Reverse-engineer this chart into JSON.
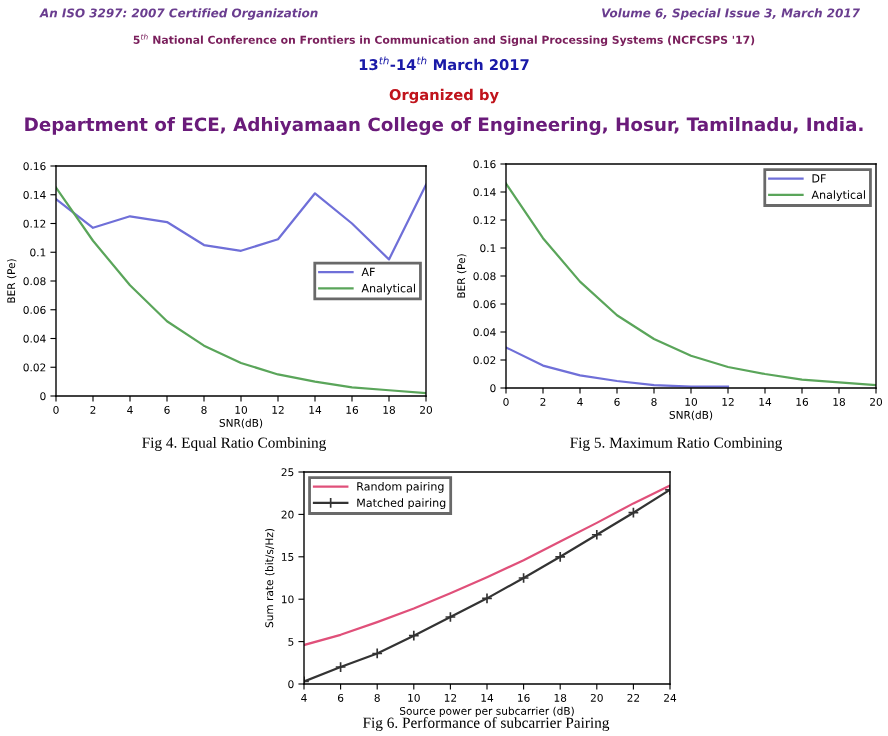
{
  "chart_data": [
    {
      "type": "line",
      "xlabel": "SNR(dB)",
      "ylabel": "BER (Pe)",
      "annotations": [
        "An ISO 3297: 2007 Certified Organization",
        "Volume 6, Special Issue 3, March 2017",
        "5$^{th}$ National Conference on Frontiers in Communication and Signal Processing Systems (NCFCSPS '17)",
        "13$^{th}$-14$^{th}$ March 2017",
        "Organized by",
        "Department of ECE, Adhiyamaan College of Engineering, Hosur, Tamilnadu, India.",
        "Fig 4. Equal Ratio Combining"
      ],
      "x": [
        0,
        2,
        4,
        6,
        8,
        10,
        12,
        14,
        16,
        18,
        20
      ],
      "series": [
        {
          "name": "AF",
          "color": "#6f6fd8",
          "values": [
            0.137,
            0.117,
            0.125,
            0.121,
            0.105,
            0.101,
            0.109,
            0.141,
            0.12,
            0.095,
            0.147
          ]
        },
        {
          "name": "Analytical",
          "color": "#5aa55a",
          "values": [
            0.145,
            0.108,
            0.077,
            0.052,
            0.035,
            0.023,
            0.015,
            0.01,
            0.006,
            0.004,
            0.002
          ]
        }
      ],
      "xlim": [
        0,
        20
      ],
      "xticks": [
        0,
        2,
        4,
        6,
        8,
        10,
        12,
        14,
        16,
        18,
        20
      ],
      "ylim": [
        0,
        0.16
      ],
      "yticks": [
        0,
        0.02,
        0.04,
        0.06,
        0.08,
        0.1,
        0.12,
        0.14,
        0.16
      ],
      "legend": "right"
    },
    {
      "type": "line",
      "xlabel": "SNR(dB)",
      "ylabel": "BER (Pe)",
      "annotations": [
        "Fig 5. Maximum Ratio Combining"
      ],
      "x": [
        0,
        2,
        4,
        6,
        8,
        10,
        12,
        14,
        16,
        18,
        20
      ],
      "series": [
        {
          "name": "DF",
          "color": "#6f6fd8",
          "values": [
            0.029,
            0.016,
            0.009,
            0.005,
            0.002,
            0.001,
            0.001,
            null,
            null,
            null,
            null
          ]
        },
        {
          "name": "Analytical",
          "color": "#5aa55a",
          "values": [
            0.146,
            0.107,
            0.076,
            0.052,
            0.035,
            0.023,
            0.015,
            0.01,
            0.006,
            0.004,
            0.002
          ]
        }
      ],
      "xlim": [
        0,
        20
      ],
      "xticks": [
        0,
        2,
        4,
        6,
        8,
        10,
        12,
        14,
        16,
        18,
        20
      ],
      "ylim": [
        0,
        0.16
      ],
      "yticks": [
        0,
        0.02,
        0.04,
        0.06,
        0.08,
        0.1,
        0.12,
        0.14,
        0.16
      ],
      "legend": "top right"
    },
    {
      "type": "line",
      "xlabel": "Source power per subcarrier (dB)",
      "ylabel": "Sum rate (bit/s/Hz)",
      "annotations": [
        "Fig 6. Performance of subcarrier Pairing"
      ],
      "x": [
        4,
        6,
        8,
        10,
        12,
        14,
        16,
        18,
        20,
        22,
        24
      ],
      "series": [
        {
          "name": "Random pairing",
          "color": "#e0507a",
          "values": [
            4.6,
            5.8,
            7.3,
            8.9,
            10.7,
            12.6,
            14.6,
            16.8,
            19.0,
            21.3,
            23.4
          ]
        },
        {
          "name": "Matched pairing",
          "color": "#333333",
          "marker": "cross",
          "values": [
            0.3,
            2.0,
            3.6,
            5.7,
            7.9,
            10.1,
            12.5,
            15.0,
            17.6,
            20.2,
            22.9
          ]
        }
      ],
      "xlim": [
        4,
        24
      ],
      "xticks": [
        4,
        6,
        8,
        10,
        12,
        14,
        16,
        18,
        20,
        22,
        24
      ],
      "ylim": [
        0,
        25
      ],
      "yticks": [
        0,
        5,
        10,
        15,
        20,
        25
      ],
      "legend": "top left"
    }
  ]
}
